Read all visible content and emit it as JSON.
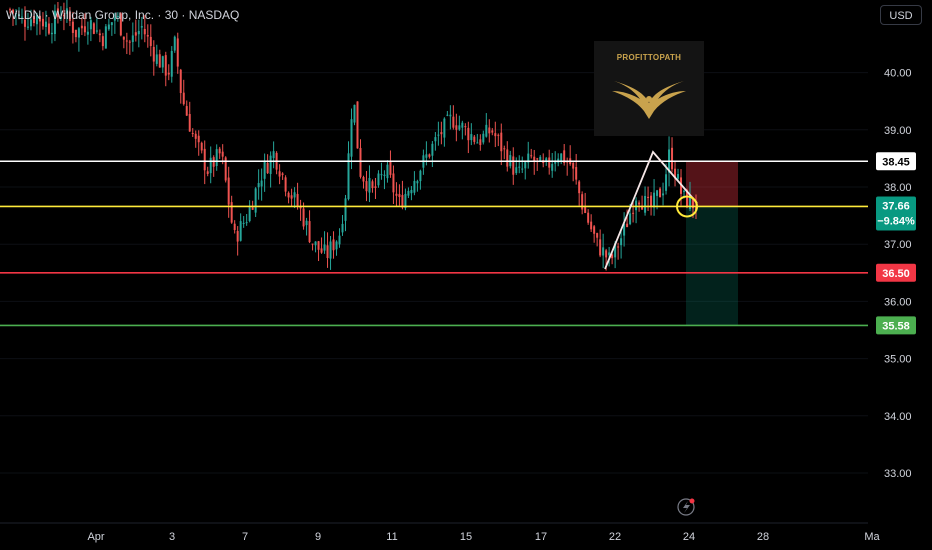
{
  "header": {
    "symbol_line": "WLDN · Willdan Group, Inc. · 30 · NASDAQ"
  },
  "currency_button": "USD",
  "watermark": {
    "text": "PROFITTOPATH",
    "icon": "eagle-icon"
  },
  "colors": {
    "background": "#000000",
    "bull": "#26a69a",
    "bear": "#ef5350",
    "resistance": "#ffffff",
    "current": "#ffeb3b",
    "stop_target_red": "#f23645",
    "target_green": "#4caf50",
    "badge_teal": "#089981"
  },
  "chart_data": {
    "type": "candlestick",
    "ylim": [
      32.4,
      41.2
    ],
    "y_ticks": [
      33.0,
      34.0,
      35.0,
      36.0,
      37.0,
      38.0,
      39.0,
      40.0
    ],
    "x_tick_labels": [
      "Apr",
      "3",
      "7",
      "9",
      "11",
      "15",
      "17",
      "22",
      "24",
      "28",
      "Ma"
    ],
    "horizontal_levels": [
      {
        "price": 38.45,
        "label": "38.45",
        "color": "#ffffff"
      },
      {
        "price": 37.66,
        "label": "37.66",
        "sublabel": "−9.84%",
        "color": "#ffeb3b"
      },
      {
        "price": 36.5,
        "label": "36.50",
        "color": "#f23645"
      },
      {
        "price": 35.58,
        "label": "35.58",
        "color": "#4caf50"
      }
    ],
    "path_points": [
      [
        0,
        41.1
      ],
      [
        2,
        40.9
      ],
      [
        4,
        41.0
      ],
      [
        6,
        40.8
      ],
      [
        8,
        41.1
      ],
      [
        10,
        40.7
      ],
      [
        12,
        40.9
      ],
      [
        14,
        40.6
      ],
      [
        16,
        41.0
      ],
      [
        18,
        40.5
      ],
      [
        20,
        40.8
      ],
      [
        22,
        40.3
      ],
      [
        24,
        40.0
      ],
      [
        25,
        40.5
      ],
      [
        26,
        39.6
      ],
      [
        28,
        38.8
      ],
      [
        30,
        38.3
      ],
      [
        32,
        38.6
      ],
      [
        34,
        37.1
      ],
      [
        36,
        37.5
      ],
      [
        38,
        38.2
      ],
      [
        40,
        38.6
      ],
      [
        42,
        38.0
      ],
      [
        44,
        37.6
      ],
      [
        46,
        37.0
      ],
      [
        48,
        36.8
      ],
      [
        50,
        37.2
      ],
      [
        51,
        38.0
      ],
      [
        52,
        39.7
      ],
      [
        53,
        38.3
      ],
      [
        55,
        37.9
      ],
      [
        57,
        38.3
      ],
      [
        59,
        37.7
      ],
      [
        61,
        38.1
      ],
      [
        63,
        38.5
      ],
      [
        65,
        38.9
      ],
      [
        67,
        39.2
      ],
      [
        69,
        39.0
      ],
      [
        71,
        38.8
      ],
      [
        73,
        39.0
      ],
      [
        75,
        38.6
      ],
      [
        77,
        38.2
      ],
      [
        79,
        38.5
      ],
      [
        81,
        38.3
      ],
      [
        83,
        38.6
      ],
      [
        85,
        38.4
      ],
      [
        87,
        37.6
      ],
      [
        89,
        37.0
      ],
      [
        91,
        36.7
      ],
      [
        93,
        37.2
      ],
      [
        95,
        37.9
      ],
      [
        97,
        37.6
      ],
      [
        99,
        38.0
      ],
      [
        100,
        38.6
      ],
      [
        101,
        38.2
      ],
      [
        102,
        37.8
      ],
      [
        103,
        37.75
      ],
      [
        104,
        37.66
      ]
    ],
    "triangle": [
      [
        605,
        269
      ],
      [
        653,
        152
      ],
      [
        697,
        203
      ]
    ],
    "circle_marker": {
      "price": 37.66
    },
    "position_box": {
      "entry": 37.66,
      "stop": 38.45,
      "target": 35.58
    }
  }
}
